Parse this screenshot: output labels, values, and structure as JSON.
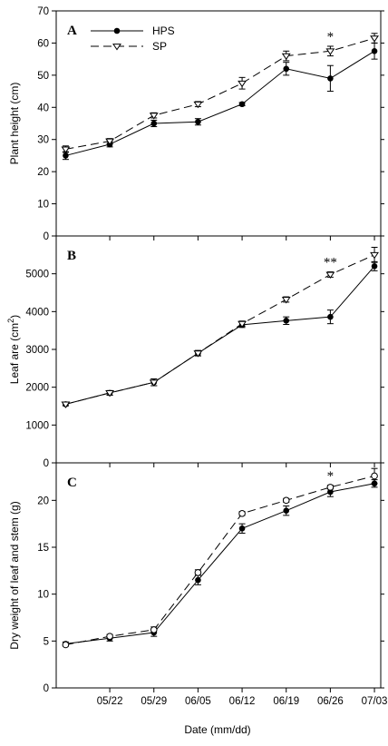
{
  "figure": {
    "xlabel": "Date (mm/dd)",
    "x_tick_labels": [
      "05/22",
      "05/29",
      "06/05",
      "06/12",
      "06/19",
      "06/26",
      "07/03"
    ],
    "x_tick_days": [
      7,
      14,
      21,
      28,
      35,
      42,
      49
    ],
    "xlim_days": [
      -1.5,
      50
    ],
    "date_reference": "05/15"
  },
  "legend": {
    "items": [
      {
        "label": "HPS",
        "style": "solid",
        "marker": "filled-circle"
      },
      {
        "label": "SP",
        "style": "dashed",
        "marker": "open-triangle-down"
      }
    ]
  },
  "chart_data": [
    {
      "type": "line",
      "panel_label": "A",
      "ylabel": "Plant height (cm)",
      "ylim": [
        0,
        70
      ],
      "yticks": [
        0,
        10,
        20,
        30,
        40,
        50,
        60,
        70
      ],
      "x": [
        "05/15",
        "05/22",
        "05/29",
        "06/05",
        "06/12",
        "06/19",
        "06/26",
        "07/03"
      ],
      "series": [
        {
          "name": "HPS",
          "values": [
            25,
            28.5,
            35,
            35.5,
            41,
            52,
            49,
            57.5
          ],
          "errors": [
            1.2,
            0.8,
            1,
            1,
            0.5,
            2,
            4,
            2.5
          ]
        },
        {
          "name": "SP",
          "values": [
            27,
            29.5,
            37.5,
            41,
            47.5,
            56,
            57.5,
            61.5
          ],
          "errors": [
            1,
            0.8,
            0.8,
            0.8,
            1.8,
            1.5,
            1.5,
            1.5
          ]
        }
      ],
      "annotations": [
        {
          "text": "*",
          "x": "06/26"
        }
      ]
    },
    {
      "type": "line",
      "panel_label": "B",
      "ylabel": "Leaf are (cm2)",
      "ylim": [
        0,
        6000
      ],
      "yticks": [
        0,
        1000,
        2000,
        3000,
        4000,
        5000
      ],
      "x": [
        "05/15",
        "05/22",
        "05/29",
        "06/05",
        "06/12",
        "06/19",
        "06/26",
        "07/03"
      ],
      "series": [
        {
          "name": "HPS",
          "values": [
            1550,
            1850,
            2130,
            2900,
            3650,
            3760,
            3860,
            5200
          ],
          "errors": [
            40,
            60,
            90,
            70,
            70,
            100,
            180,
            120
          ]
        },
        {
          "name": "SP",
          "values": [
            1550,
            1850,
            2130,
            2900,
            3680,
            4320,
            4980,
            5500
          ],
          "errors": [
            40,
            60,
            90,
            70,
            70,
            70,
            70,
            200
          ]
        }
      ],
      "annotations": [
        {
          "text": "**",
          "x": "06/26"
        }
      ]
    },
    {
      "type": "line",
      "panel_label": "C",
      "ylabel": "Dry weight of leaf and stem (g)",
      "ylim": [
        0,
        24
      ],
      "yticks": [
        0,
        5,
        10,
        15,
        20
      ],
      "x": [
        "05/15",
        "05/22",
        "05/29",
        "06/05",
        "06/12",
        "06/19",
        "06/26",
        "07/03"
      ],
      "series": [
        {
          "name": "HPS",
          "values": [
            4.7,
            5.3,
            5.9,
            11.5,
            17,
            18.9,
            20.9,
            21.8
          ],
          "errors": [
            0.2,
            0.3,
            0.4,
            0.5,
            0.5,
            0.5,
            0.5,
            0.4
          ]
        },
        {
          "name": "SP",
          "values": [
            4.6,
            5.5,
            6.2,
            12.3,
            18.6,
            20,
            21.4,
            22.6
          ],
          "errors": [
            0.15,
            0.2,
            0.3,
            0.3,
            0.2,
            0.2,
            0.2,
            0.8
          ]
        }
      ],
      "annotations": [
        {
          "text": "*",
          "x": "06/26"
        }
      ]
    }
  ]
}
